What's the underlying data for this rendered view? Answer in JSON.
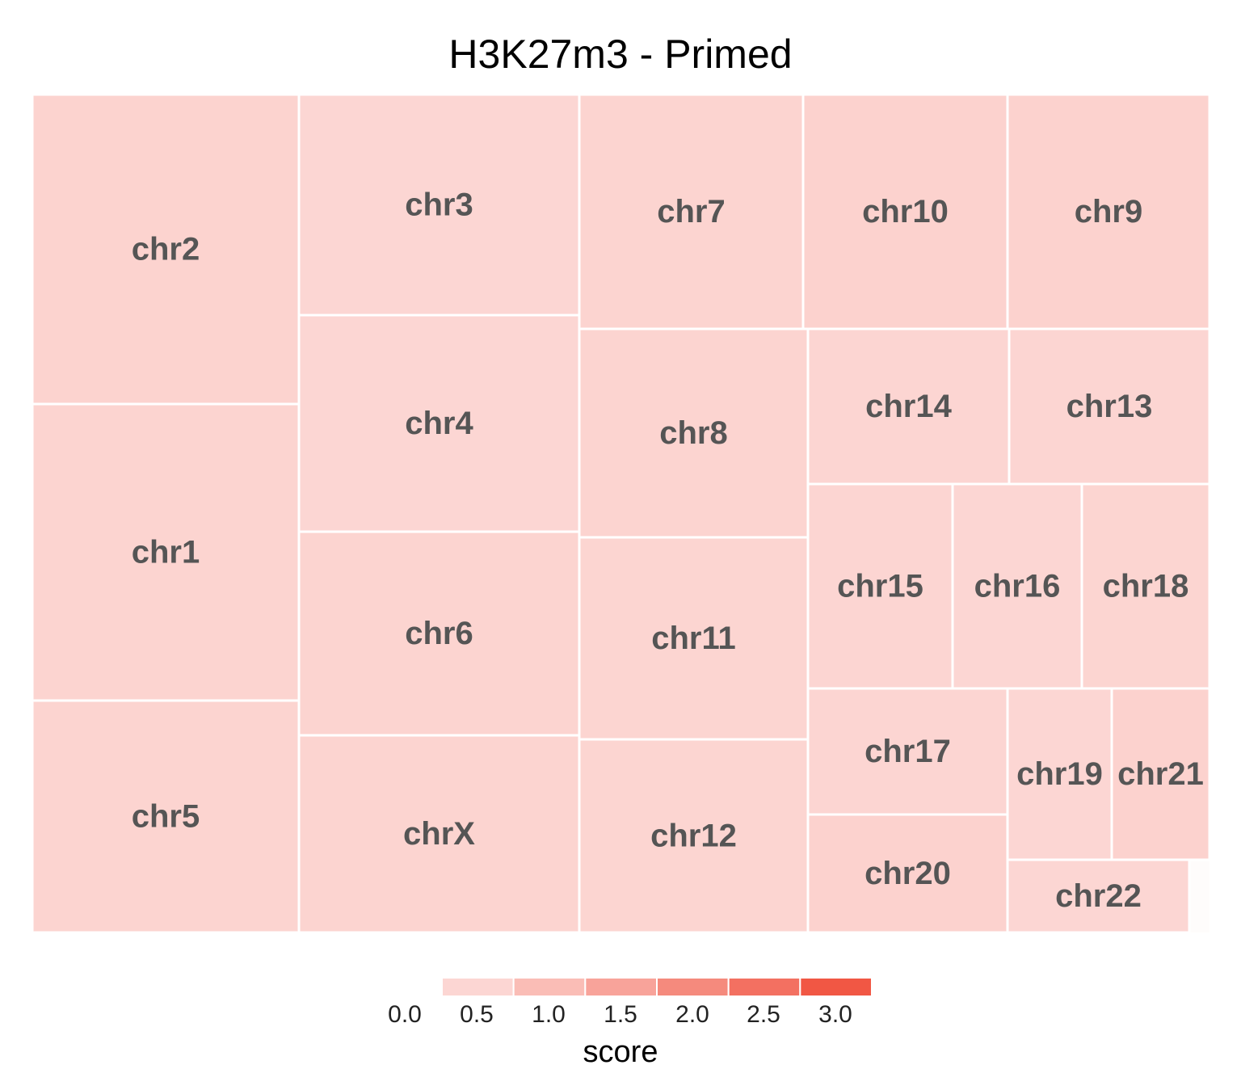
{
  "chart_data": {
    "type": "treemap",
    "title": "H3K27m3 - Primed",
    "tiles": [
      {
        "label": "chr1",
        "score": 0.3
      },
      {
        "label": "chr2",
        "score": 0.32
      },
      {
        "label": "chr3",
        "score": 0.25
      },
      {
        "label": "chr4",
        "score": 0.25
      },
      {
        "label": "chr5",
        "score": 0.3
      },
      {
        "label": "chr6",
        "score": 0.3
      },
      {
        "label": "chr7",
        "score": 0.3
      },
      {
        "label": "chr8",
        "score": 0.3
      },
      {
        "label": "chr9",
        "score": 0.33
      },
      {
        "label": "chr10",
        "score": 0.33
      },
      {
        "label": "chr11",
        "score": 0.28
      },
      {
        "label": "chr12",
        "score": 0.28
      },
      {
        "label": "chr13",
        "score": 0.27
      },
      {
        "label": "chr14",
        "score": 0.27
      },
      {
        "label": "chr15",
        "score": 0.27
      },
      {
        "label": "chr16",
        "score": 0.25
      },
      {
        "label": "chr17",
        "score": 0.27
      },
      {
        "label": "chr18",
        "score": 0.28
      },
      {
        "label": "chr19",
        "score": 0.25
      },
      {
        "label": "chr20",
        "score": 0.33
      },
      {
        "label": "chr21",
        "score": 0.33
      },
      {
        "label": "chr22",
        "score": 0.25
      },
      {
        "label": "chrX",
        "score": 0.3
      }
    ],
    "legend": {
      "title": "score",
      "ticks": [
        "0.0",
        "0.5",
        "1.0",
        "1.5",
        "2.0",
        "2.5",
        "3.0"
      ],
      "range": [
        0.0,
        3.0
      ],
      "low_color": "#fde3e1",
      "high_color": "#f04a36"
    },
    "label_color": "#555555",
    "tile_border_color": "#ffffff"
  }
}
